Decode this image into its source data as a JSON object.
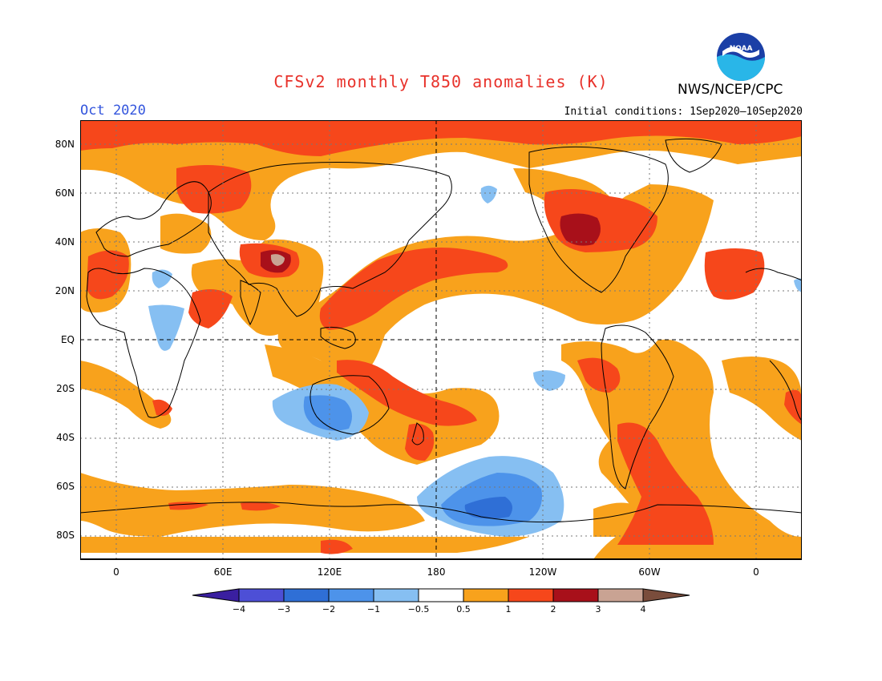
{
  "title": "CFSv2 monthly T850 anomalies (K)",
  "org": "NWS/NCEP/CPC",
  "logo_text": "NOAA",
  "month": "Oct 2020",
  "initial_conditions": "Initial conditions: 1Sep2020—10Sep2020",
  "lat_labels": [
    "80N",
    "60N",
    "40N",
    "20N",
    "EQ",
    "20S",
    "40S",
    "60S",
    "80S"
  ],
  "lon_labels": [
    "0",
    "60E",
    "120E",
    "180",
    "120W",
    "60W",
    "0"
  ],
  "colorbar": {
    "labels": [
      "−4",
      "−3",
      "−2",
      "−1",
      "−0.5",
      "0.5",
      "1",
      "2",
      "3",
      "4"
    ],
    "colors": [
      "#3a1fa0",
      "#4d4fd6",
      "#2f6fd6",
      "#4d93ea",
      "#86bff2",
      "#ffffff",
      "#f8a21c",
      "#f6471b",
      "#a8101a",
      "#c9a393",
      "#7a4d3c"
    ]
  },
  "colors": {
    "title": "#e8322b",
    "month": "#3355dd",
    "weak_pos": "#f8a21c",
    "mod_pos": "#f6471b",
    "strong_pos": "#a8101a",
    "extreme_pos": "#c9a393",
    "weak_neg": "#86bff2",
    "mod_neg": "#4d93ea",
    "strong_neg": "#2f6fd6"
  }
}
